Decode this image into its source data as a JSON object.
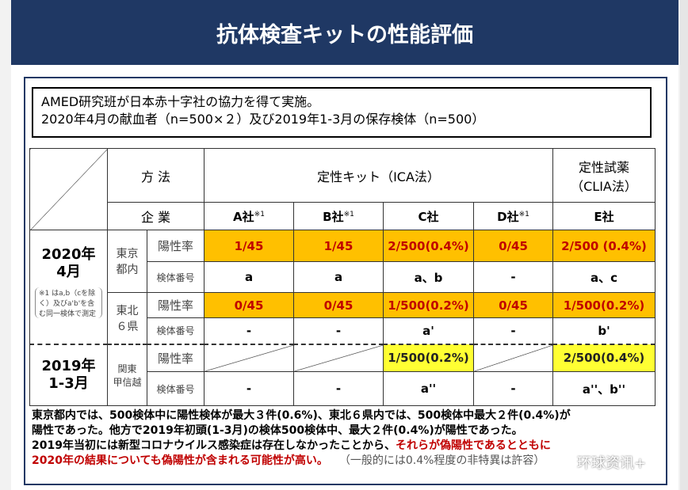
{
  "title": "抗体検査キットの性能評価",
  "info": [
    "AMED研究班が日本赤十字社の協力を得て実施。",
    "2020年4月の献血者（n=500×２）及び2019年1-3月の保存検体（n=500）"
  ],
  "header": {
    "method": "方 法",
    "company": "企 業",
    "ica": "定性キット（ICA法）",
    "clia": "定性試薬\n（CLIA法）",
    "companies": [
      "A社",
      "B社",
      "C社",
      "D社",
      "E社"
    ],
    "marks": [
      "※1",
      "※1",
      "",
      "※1",
      ""
    ]
  },
  "periods": [
    {
      "label": "2020年\n4月",
      "note": "※1 はa,b（cを除く）及びa'b'を含む同一検体で測定"
    },
    {
      "label": "2019年\n1-3月"
    }
  ],
  "regions": [
    "東京\n都内",
    "東北\n６県",
    "関東\n甲信越"
  ],
  "row_labels": {
    "positive": "陽性率",
    "sample": "検体番号"
  },
  "rows": [
    {
      "type": "positive",
      "values": [
        "1/45",
        "1/45",
        "2/500(0.4%)",
        "0/45",
        "2/500 (0.4%)"
      ]
    },
    {
      "type": "sample",
      "values": [
        "a",
        "a",
        "a、b",
        "-",
        "a、c"
      ]
    },
    {
      "type": "positive",
      "values": [
        "0/45",
        "0/45",
        "1/500(0.2%)",
        "0/45",
        "1/500(0.2%)"
      ]
    },
    {
      "type": "sample",
      "values": [
        "-",
        "-",
        "a'",
        "-",
        "b'"
      ]
    },
    {
      "type": "positive",
      "values": [
        "",
        "",
        "1/500(0.2%)",
        "",
        "2/500(0.4%)"
      ]
    },
    {
      "type": "sample",
      "values": [
        "-",
        "-",
        "a''",
        "-",
        "a''、b''"
      ]
    }
  ],
  "notes": {
    "line1": "東京都内では、500検体中に陽性検体が最大３件(0.6%)、東北６県内では、500検体中最大２件(0.4%)が",
    "line2": "陽性であった。他方で2019年初頭(1-3月)の検体500検体中、最大２件(0.4%)が陽性であった。",
    "line3a": "2019年当初には新型コロナウイルス感染症は存在しなかったことから、",
    "line3b": "それらが偽陽性であるとともに",
    "line4a": "2020年の結果についても偽陽性が含まれる可能性が高い。",
    "line4b": "（一般的には0.4%程度の非特異は許容）"
  },
  "watermark": "环球资讯+",
  "colors": {
    "title_bg": "#1f3864",
    "orange": "#ffc000",
    "yellow": "#ffff33",
    "red": "#c00000"
  }
}
